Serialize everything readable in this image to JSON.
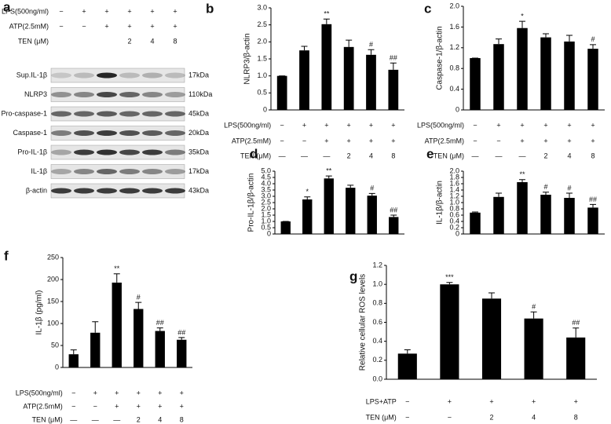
{
  "blot": {
    "panel": "a",
    "rows": [
      {
        "label": "LPS(500ng/ml)",
        "entries": [
          "−",
          "+",
          "+",
          "+",
          "+",
          "+"
        ]
      },
      {
        "label": "ATP(2.5mM)",
        "entries": [
          "−",
          "−",
          "+",
          "+",
          "+",
          "+"
        ]
      },
      {
        "label": "TEN (μM)",
        "entries": [
          null,
          null,
          null,
          "2",
          "4",
          "8"
        ]
      }
    ],
    "bands": [
      {
        "label": "Sup.IL-1β",
        "size": "17kDa"
      },
      {
        "label": "NLRP3",
        "size": "110kDa"
      },
      {
        "label": "Pro-caspase-1",
        "size": "45kDa"
      },
      {
        "label": "Caspase-1",
        "size": "20kDa"
      },
      {
        "label": "Pro-IL-1β",
        "size": "35kDa"
      },
      {
        "label": "IL-1β",
        "size": "17kDa"
      },
      {
        "label": "β-actin",
        "size": "43kDa"
      }
    ]
  },
  "chart_data": [
    {
      "type": "bar",
      "panel": "b",
      "y_label": "NLRP3/β-actin",
      "color": "#000000",
      "categories": [
        null,
        null,
        null,
        null,
        null,
        null
      ],
      "values": [
        1.0,
        1.75,
        2.52,
        1.85,
        1.62,
        1.18
      ],
      "errors": [
        0,
        0.12,
        0.15,
        0.2,
        0.15,
        0.2
      ],
      "annotations": [
        null,
        null,
        "**",
        null,
        "#",
        "##"
      ],
      "ylim": [
        0,
        3
      ],
      "yticks": [
        0,
        0.5,
        {
          "value": 1,
          "label": "1.0"
        },
        1.5,
        {
          "value": 2,
          "label": "2.0"
        },
        2.5,
        {
          "value": 3,
          "label": "3.0"
        }
      ],
      "rows": [
        {
          "label": "LPS(500ng/ml)",
          "entries": [
            "−",
            "+",
            "+",
            "+",
            "+",
            "+"
          ]
        },
        {
          "label": "ATP(2.5mM)",
          "entries": [
            "−",
            "−",
            "+",
            "+",
            "+",
            "+"
          ]
        },
        {
          "label": "TEN (μM)",
          "entries": [
            "—",
            "—",
            "—",
            "2",
            "4",
            "8"
          ]
        }
      ]
    },
    {
      "type": "bar",
      "panel": "c",
      "y_label": "Caspase-1/β-actin",
      "color": "#000000",
      "categories": [
        null,
        null,
        null,
        null,
        null,
        null
      ],
      "values": [
        1.0,
        1.27,
        1.58,
        1.4,
        1.32,
        1.18
      ],
      "errors": [
        0,
        0.1,
        0.13,
        0.07,
        0.12,
        0.08
      ],
      "annotations": [
        null,
        null,
        "*",
        null,
        null,
        "#"
      ],
      "ylim": [
        0,
        2
      ],
      "yticks": [
        0,
        0.4,
        0.8,
        1.2,
        1.6,
        {
          "value": 2,
          "label": "2.0"
        }
      ],
      "rows": [
        {
          "label": "LPS(500ng/ml)",
          "entries": [
            "−",
            "+",
            "+",
            "+",
            "+",
            "+"
          ]
        },
        {
          "label": "ATP(2.5mM)",
          "entries": [
            "−",
            "−",
            "+",
            "+",
            "+",
            "+"
          ]
        },
        {
          "label": "TEN (μM)",
          "entries": [
            "—",
            "—",
            "—",
            "2",
            "4",
            "8"
          ]
        }
      ]
    },
    {
      "type": "bar",
      "panel": "d",
      "y_label": "Pro-IL-1β/β-actin",
      "color": "#000000",
      "categories": [
        null,
        null,
        null,
        null,
        null,
        null
      ],
      "values": [
        1.0,
        2.75,
        4.42,
        3.68,
        3.05,
        1.35
      ],
      "errors": [
        0,
        0.2,
        0.2,
        0.2,
        0.18,
        0.15
      ],
      "annotations": [
        null,
        "*",
        "**",
        null,
        "#",
        "##"
      ],
      "ylim": [
        0,
        5
      ],
      "yticks": [
        0,
        0.5,
        {
          "value": 1,
          "label": "1.0"
        },
        1.5,
        {
          "value": 2,
          "label": "2.0"
        },
        2.5,
        {
          "value": 3,
          "label": "3.0"
        },
        3.5,
        {
          "value": 4,
          "label": "4.0"
        },
        4.5,
        {
          "value": 5,
          "label": "5.0"
        }
      ]
    },
    {
      "type": "bar",
      "panel": "e",
      "y_label": "IL-1β/β-actin",
      "color": "#000000",
      "categories": [
        null,
        null,
        null,
        null,
        null,
        null
      ],
      "values": [
        0.68,
        1.18,
        1.65,
        1.25,
        1.15,
        0.84
      ],
      "errors": [
        0.02,
        0.12,
        0.08,
        0.08,
        0.15,
        0.1
      ],
      "annotations": [
        null,
        null,
        "**",
        "#",
        "#",
        "##"
      ],
      "ylim": [
        0,
        2
      ],
      "yticks": [
        0,
        0.2,
        0.4,
        0.6,
        0.8,
        {
          "value": 1,
          "label": "1.0"
        },
        1.2,
        1.4,
        1.6,
        1.8,
        {
          "value": 2,
          "label": "2.0"
        }
      ]
    },
    {
      "type": "bar",
      "panel": "f",
      "y_label": "IL-1β (pg/ml)",
      "color": "#000000",
      "categories": [
        null,
        null,
        null,
        null,
        null,
        null
      ],
      "values": [
        30,
        79,
        193,
        133,
        83,
        63
      ],
      "errors": [
        10,
        25,
        20,
        15,
        7,
        5
      ],
      "annotations": [
        null,
        null,
        "**",
        "#",
        "##",
        "##"
      ],
      "ylim": [
        0,
        250
      ],
      "yticks": [
        0,
        50,
        100,
        150,
        200,
        250
      ],
      "rows": [
        {
          "label": "LPS(500ng/ml)",
          "entries": [
            "−",
            "+",
            "+",
            "+",
            "+",
            "+"
          ]
        },
        {
          "label": "ATP(2.5mM)",
          "entries": [
            "−",
            "−",
            "+",
            "+",
            "+",
            "+"
          ]
        },
        {
          "label": "TEN (μM)",
          "entries": [
            "—",
            "—",
            "—",
            "2",
            "4",
            "8"
          ]
        }
      ]
    },
    {
      "type": "bar",
      "panel": "g",
      "y_label": "Relative cellular ROS levels",
      "color": "#000000",
      "categories": [
        null,
        null,
        null,
        null,
        null
      ],
      "values": [
        0.27,
        1.0,
        0.85,
        0.64,
        0.44
      ],
      "errors": [
        0.04,
        0.02,
        0.06,
        0.07,
        0.1
      ],
      "annotations": [
        null,
        "***",
        null,
        "#",
        "##"
      ],
      "ylim": [
        0,
        1.2
      ],
      "yticks": [
        {
          "value": 0,
          "label": "0.0"
        },
        0.2,
        0.4,
        0.6,
        0.8,
        {
          "value": 1,
          "label": "1.0"
        },
        1.2
      ],
      "rows": [
        {
          "label": "LPS+ATP",
          "entries": [
            "−",
            "+",
            "+",
            "+",
            "+"
          ]
        },
        {
          "label": "TEN (μM)",
          "entries": [
            "−",
            "−",
            "2",
            "4",
            "8"
          ]
        }
      ]
    }
  ]
}
